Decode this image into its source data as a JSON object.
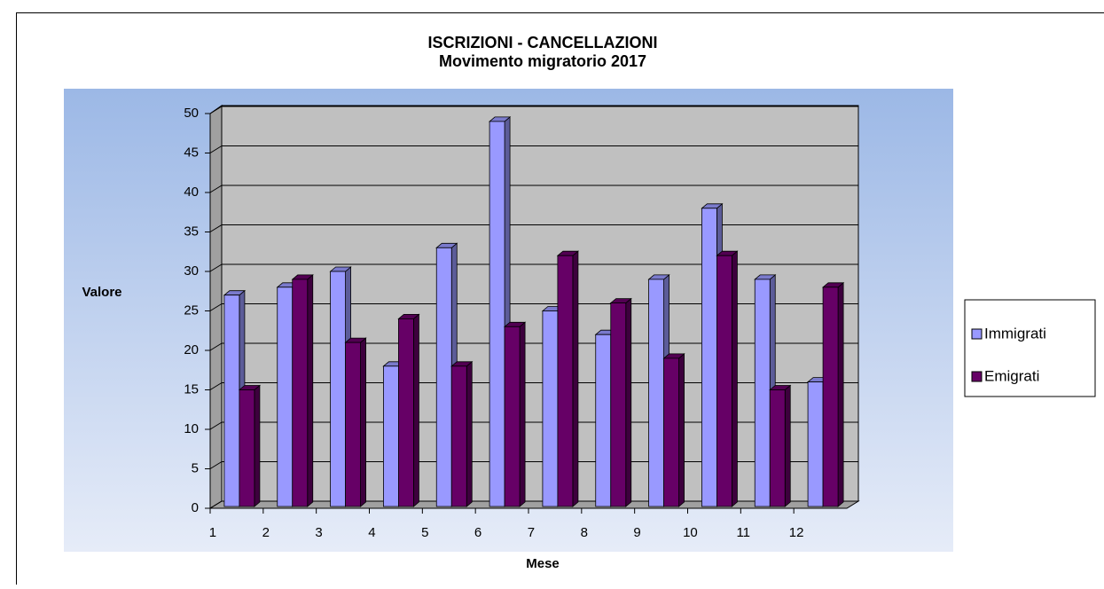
{
  "chart_data": {
    "type": "bar",
    "title": "ISCRIZIONI  - CANCELLAZIONI",
    "subtitle": "Movimento migratorio 2017",
    "x_label": "Mese",
    "y_label": "Valore",
    "categories": [
      "1",
      "2",
      "3",
      "4",
      "5",
      "6",
      "7",
      "8",
      "9",
      "10",
      "11",
      "12"
    ],
    "series": [
      {
        "name": "Immigrati",
        "color": "#9999ff",
        "values": [
          27,
          28,
          30,
          18,
          33,
          49,
          25,
          22,
          29,
          38,
          29,
          16
        ]
      },
      {
        "name": "Emigrati",
        "color": "#660066",
        "values": [
          15,
          29,
          21,
          24,
          18,
          23,
          32,
          26,
          19,
          32,
          15,
          28
        ]
      }
    ],
    "ylim": [
      0,
      50
    ],
    "yticks": [
      0,
      5,
      10,
      15,
      20,
      25,
      30,
      35,
      40,
      45,
      50
    ],
    "grid": true,
    "legend": "right"
  }
}
